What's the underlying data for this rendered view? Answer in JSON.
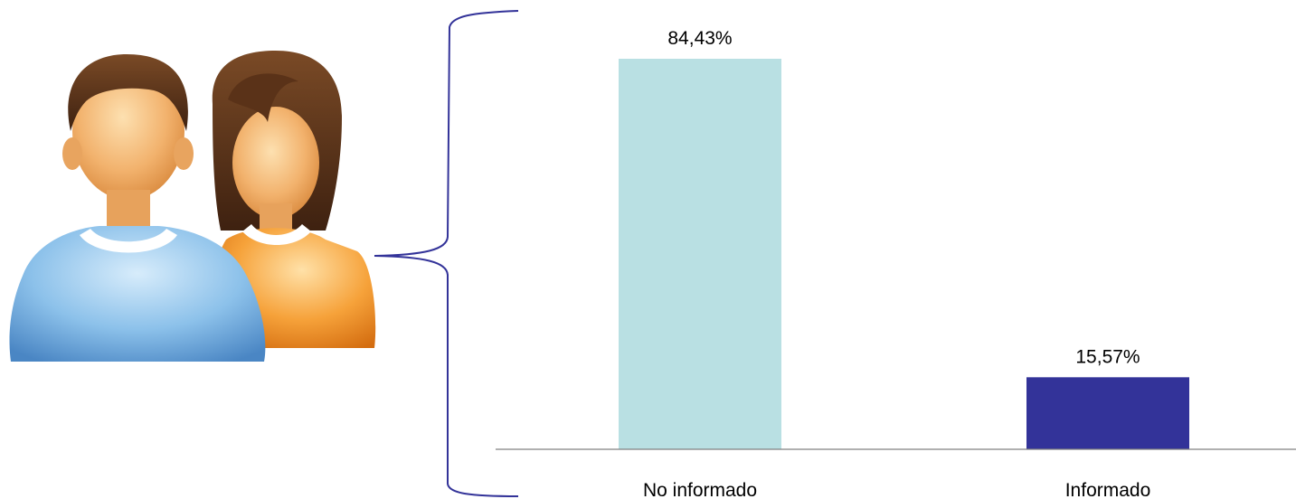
{
  "chart_data": {
    "type": "bar",
    "categories": [
      "No informado",
      "Informado"
    ],
    "values": [
      84.43,
      15.57
    ],
    "data_labels": [
      "84,43%",
      "15,57%"
    ],
    "bar_colors": [
      "#b9e0e3",
      "#333399"
    ],
    "ylim": [
      0,
      100
    ],
    "grid": false,
    "legend": "none",
    "title": "",
    "xlabel": "",
    "ylabel": ""
  },
  "illustration": {
    "icon": "people-icon",
    "colors": {
      "man_shirt": "#7fb6e2",
      "woman_shirt": "#f39a2b",
      "skin": "#f2b26d",
      "hair": "#5a3218",
      "brace": "#333399"
    }
  }
}
